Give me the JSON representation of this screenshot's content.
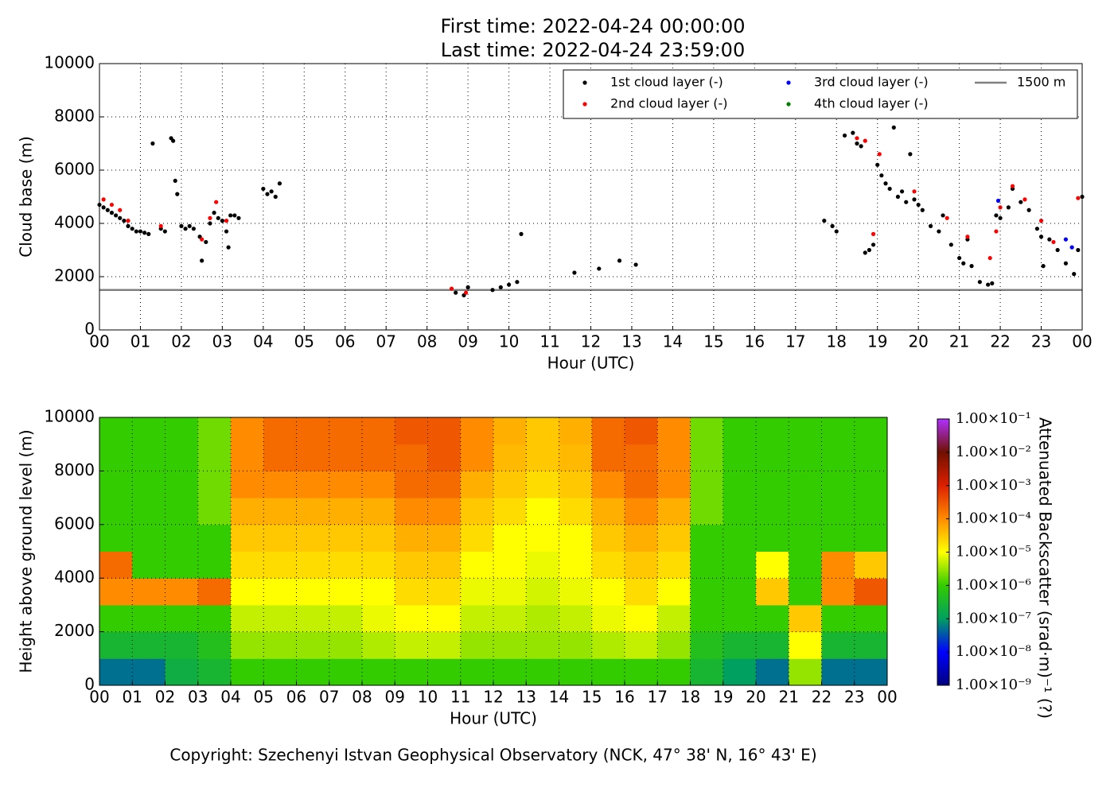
{
  "chart_data": [
    {
      "type": "scatter",
      "title": [
        "First time: 2022-04-24 00:00:00",
        "Last time: 2022-04-24 23:59:00"
      ],
      "x_label": "Hour (UTC)",
      "y_label": "Cloud base (m)",
      "xlim": [
        0,
        24
      ],
      "ylim": [
        0,
        10000
      ],
      "xticks": [
        {
          "value": 0,
          "label": "00"
        },
        {
          "value": 1,
          "label": "01"
        },
        {
          "value": 2,
          "label": "02"
        },
        {
          "value": 3,
          "label": "03"
        },
        {
          "value": 4,
          "label": "04"
        },
        {
          "value": 5,
          "label": "05"
        },
        {
          "value": 6,
          "label": "06"
        },
        {
          "value": 7,
          "label": "07"
        },
        {
          "value": 8,
          "label": "08"
        },
        {
          "value": 9,
          "label": "09"
        },
        {
          "value": 10,
          "label": "10"
        },
        {
          "value": 11,
          "label": "11"
        },
        {
          "value": 12,
          "label": "12"
        },
        {
          "value": 13,
          "label": "13"
        },
        {
          "value": 14,
          "label": "14"
        },
        {
          "value": 15,
          "label": "15"
        },
        {
          "value": 16,
          "label": "16"
        },
        {
          "value": 17,
          "label": "17"
        },
        {
          "value": 18,
          "label": "18"
        },
        {
          "value": 19,
          "label": "19"
        },
        {
          "value": 20,
          "label": "20"
        },
        {
          "value": 21,
          "label": "21"
        },
        {
          "value": 22,
          "label": "22"
        },
        {
          "value": 23,
          "label": "23"
        },
        {
          "value": 24,
          "label": "00"
        }
      ],
      "yticks": [
        0,
        2000,
        4000,
        6000,
        8000,
        10000
      ],
      "grid": true,
      "legend": "upper right",
      "series": [
        {
          "name": "1st cloud layer (-)",
          "color": "#000000",
          "x": [
            0.0,
            0.1,
            0.2,
            0.3,
            0.4,
            0.5,
            0.6,
            0.7,
            0.8,
            0.9,
            1.0,
            1.1,
            1.2,
            1.3,
            1.5,
            1.6,
            1.75,
            1.8,
            1.85,
            1.9,
            2.0,
            2.1,
            2.2,
            2.3,
            2.45,
            2.5,
            2.6,
            2.7,
            2.8,
            2.9,
            3.0,
            3.1,
            3.15,
            3.2,
            3.3,
            3.4,
            4.0,
            4.1,
            4.2,
            4.3,
            4.4,
            8.7,
            8.9,
            9.0,
            9.6,
            9.8,
            10.0,
            10.2,
            10.3,
            11.6,
            12.2,
            12.7,
            13.1,
            17.7,
            17.9,
            18.0,
            18.2,
            18.4,
            18.5,
            18.6,
            18.7,
            18.8,
            18.9,
            19.0,
            19.1,
            19.2,
            19.3,
            19.4,
            19.5,
            19.6,
            19.7,
            19.8,
            19.9,
            20.0,
            20.1,
            20.3,
            20.5,
            20.6,
            20.8,
            21.0,
            21.1,
            21.2,
            21.3,
            21.5,
            21.7,
            21.8,
            21.9,
            22.0,
            22.2,
            22.3,
            22.5,
            22.7,
            22.9,
            23.0,
            23.05,
            23.2,
            23.4,
            23.6,
            23.8,
            23.9,
            24.0
          ],
          "values": [
            4700,
            4600,
            4500,
            4400,
            4300,
            4200,
            4100,
            3900,
            3800,
            3700,
            3700,
            3650,
            3600,
            7000,
            3800,
            3700,
            7200,
            7100,
            5600,
            5100,
            3900,
            3800,
            3900,
            3800,
            3500,
            2600,
            3300,
            4000,
            4400,
            4200,
            4100,
            3700,
            3100,
            4300,
            4300,
            4200,
            5300,
            5100,
            5200,
            5000,
            5500,
            1400,
            1300,
            1600,
            1500,
            1600,
            1700,
            1800,
            3600,
            2150,
            2300,
            2600,
            2450,
            4100,
            3900,
            3700,
            7300,
            7400,
            7000,
            6900,
            2900,
            3000,
            3200,
            6200,
            5800,
            5500,
            5300,
            7600,
            5000,
            5200,
            4800,
            6600,
            4900,
            4700,
            4500,
            3900,
            3700,
            4300,
            3200,
            2700,
            2500,
            3400,
            2400,
            1800,
            1700,
            1750,
            4300,
            4200,
            4600,
            5300,
            4800,
            4500,
            3800,
            3500,
            2400,
            3400,
            3000,
            2500,
            2100,
            3000,
            5000
          ]
        },
        {
          "name": "2nd cloud layer (-)",
          "color": "#ff0000",
          "x": [
            0.1,
            0.3,
            0.5,
            0.7,
            1.5,
            2.5,
            2.7,
            2.85,
            3.1,
            8.6,
            8.95,
            18.5,
            18.7,
            18.9,
            19.05,
            19.9,
            20.7,
            21.2,
            21.75,
            21.9,
            22.0,
            22.3,
            22.6,
            23.0,
            23.3,
            23.9
          ],
          "values": [
            4900,
            4700,
            4500,
            4100,
            3900,
            3400,
            4200,
            4800,
            4100,
            1550,
            1400,
            7200,
            7100,
            3600,
            6600,
            5200,
            4200,
            3500,
            2700,
            3700,
            4600,
            5400,
            4900,
            4100,
            3300,
            4950
          ]
        },
        {
          "name": "3rd cloud layer (-)",
          "color": "#0000ff",
          "x": [
            21.95,
            23.6,
            23.75
          ],
          "values": [
            4850,
            3400,
            3100
          ]
        },
        {
          "name": "4th cloud layer (-)",
          "color": "#008000",
          "x": [],
          "values": []
        }
      ],
      "hlines": [
        {
          "name": "1500 m",
          "value": 1500,
          "color": "#808080"
        }
      ]
    },
    {
      "type": "heatmap",
      "x_label": "Hour (UTC)",
      "y_label": "Height above ground level (m)",
      "colorbar_label": "Attenuated Backscatter (srad·m)⁻¹ (?)",
      "xlim": [
        0,
        24
      ],
      "ylim": [
        0,
        10000
      ],
      "xticks": [
        {
          "value": 0,
          "label": "00"
        },
        {
          "value": 1,
          "label": "01"
        },
        {
          "value": 2,
          "label": "02"
        },
        {
          "value": 3,
          "label": "03"
        },
        {
          "value": 4,
          "label": "04"
        },
        {
          "value": 5,
          "label": "05"
        },
        {
          "value": 6,
          "label": "06"
        },
        {
          "value": 7,
          "label": "07"
        },
        {
          "value": 8,
          "label": "08"
        },
        {
          "value": 9,
          "label": "09"
        },
        {
          "value": 10,
          "label": "10"
        },
        {
          "value": 11,
          "label": "11"
        },
        {
          "value": 12,
          "label": "12"
        },
        {
          "value": 13,
          "label": "13"
        },
        {
          "value": 14,
          "label": "14"
        },
        {
          "value": 15,
          "label": "15"
        },
        {
          "value": 16,
          "label": "16"
        },
        {
          "value": 17,
          "label": "17"
        },
        {
          "value": 18,
          "label": "18"
        },
        {
          "value": 19,
          "label": "19"
        },
        {
          "value": 20,
          "label": "20"
        },
        {
          "value": 21,
          "label": "21"
        },
        {
          "value": 22,
          "label": "22"
        },
        {
          "value": 23,
          "label": "23"
        },
        {
          "value": 24,
          "label": "00"
        }
      ],
      "yticks": [
        0,
        2000,
        4000,
        6000,
        8000,
        10000
      ],
      "grid": true,
      "x_bins": [
        0,
        1,
        2,
        3,
        4,
        5,
        6,
        7,
        8,
        9,
        10,
        11,
        12,
        13,
        14,
        15,
        16,
        17,
        18,
        19,
        20,
        21,
        22,
        23,
        24
      ],
      "y_bins": [
        0,
        1000,
        2000,
        3000,
        4000,
        5000,
        6000,
        7000,
        8000,
        9000,
        10000
      ],
      "z": [
        [
          5e-08,
          5e-08,
          2e-07,
          3e-07,
          1e-06,
          1e-06,
          1e-06,
          1e-06,
          1e-06,
          1e-06,
          1e-06,
          1e-06,
          1e-06,
          1e-06,
          1e-06,
          1e-06,
          1e-06,
          1e-06,
          3e-07,
          1e-07,
          5e-08,
          3e-06,
          5e-08,
          5e-08
        ],
        [
          3e-07,
          3e-07,
          3e-07,
          5e-07,
          3e-06,
          3e-06,
          3e-06,
          3e-06,
          4e-06,
          5e-06,
          5e-06,
          3e-06,
          3e-06,
          3e-06,
          3e-06,
          4e-06,
          5e-06,
          3e-06,
          5e-07,
          3e-07,
          3e-07,
          1e-05,
          3e-07,
          3e-07
        ],
        [
          1e-06,
          1e-06,
          1e-06,
          1e-06,
          5e-06,
          5e-06,
          5e-06,
          5e-06,
          8e-06,
          1e-05,
          1e-05,
          5e-06,
          5e-06,
          4e-06,
          5e-06,
          8e-06,
          1e-05,
          5e-06,
          1e-06,
          1e-06,
          1e-06,
          3e-05,
          1e-06,
          1e-06
        ],
        [
          0.0001,
          0.0001,
          0.0001,
          0.0002,
          1e-05,
          1e-05,
          1e-05,
          1e-05,
          1e-05,
          2e-05,
          2e-05,
          8e-06,
          8e-06,
          6e-06,
          8e-06,
          1e-05,
          2e-05,
          1e-05,
          1e-06,
          1e-06,
          3e-05,
          1e-06,
          0.0001,
          0.0003
        ],
        [
          0.0002,
          1e-06,
          1e-06,
          1e-06,
          2e-05,
          2e-05,
          2e-05,
          2e-05,
          2e-05,
          3e-05,
          3e-05,
          1e-05,
          1e-05,
          8e-06,
          1e-05,
          2e-05,
          3e-05,
          2e-05,
          1e-06,
          1e-06,
          1e-05,
          1e-06,
          0.0001,
          3e-05
        ],
        [
          1e-06,
          1e-06,
          1e-06,
          1e-06,
          3e-05,
          3e-05,
          3e-05,
          3e-05,
          3e-05,
          5e-05,
          5e-05,
          2e-05,
          1e-05,
          1e-05,
          1e-05,
          3e-05,
          5e-05,
          3e-05,
          1e-06,
          1e-06,
          1e-06,
          1e-06,
          1e-06,
          1e-06
        ],
        [
          1e-06,
          1e-06,
          1e-06,
          2e-06,
          5e-05,
          5e-05,
          5e-05,
          5e-05,
          5e-05,
          0.0001,
          0.0001,
          3e-05,
          2e-05,
          1e-05,
          2e-05,
          5e-05,
          0.0001,
          5e-05,
          2e-06,
          1e-06,
          1e-06,
          1e-06,
          1e-06,
          1e-06
        ],
        [
          1e-06,
          1e-06,
          1e-06,
          2e-06,
          0.0001,
          0.0001,
          0.0001,
          0.0001,
          0.0001,
          0.0002,
          0.0002,
          5e-05,
          3e-05,
          2e-05,
          3e-05,
          0.0001,
          0.0002,
          0.0001,
          2e-06,
          1e-06,
          1e-06,
          1e-06,
          1e-06,
          1e-06
        ],
        [
          1e-06,
          1e-06,
          1e-06,
          2e-06,
          0.0001,
          0.0002,
          0.0002,
          0.0002,
          0.0002,
          0.0002,
          0.0003,
          0.0001,
          4e-05,
          3e-05,
          4e-05,
          0.0002,
          0.0002,
          0.0001,
          2e-06,
          1e-06,
          1e-06,
          1e-06,
          1e-06,
          1e-06
        ],
        [
          1e-06,
          1e-06,
          1e-06,
          2e-06,
          0.0001,
          0.0002,
          0.0002,
          0.0002,
          0.0002,
          0.0003,
          0.0003,
          0.0001,
          5e-05,
          3e-05,
          5e-05,
          0.0002,
          0.0003,
          0.0001,
          2e-06,
          1e-06,
          1e-06,
          1e-06,
          1e-06,
          1e-06
        ]
      ],
      "log_scale": true,
      "clim": [
        1e-09,
        0.1
      ],
      "colorbar_ticks": [
        {
          "value": 1e-09,
          "label": "1.00×10⁻⁹"
        },
        {
          "value": 1e-08,
          "label": "1.00×10⁻⁸"
        },
        {
          "value": 1e-07,
          "label": "1.00×10⁻⁷"
        },
        {
          "value": 1e-06,
          "label": "1.00×10⁻⁶"
        },
        {
          "value": 1e-05,
          "label": "1.00×10⁻⁵"
        },
        {
          "value": 0.0001,
          "label": "1.00×10⁻⁴"
        },
        {
          "value": 0.001,
          "label": "1.00×10⁻³"
        },
        {
          "value": 0.01,
          "label": "1.00×10⁻²"
        },
        {
          "value": 0.1,
          "label": "1.00×10⁻¹"
        }
      ],
      "colors": [
        "#00007f",
        "#0000ff",
        "#00a060",
        "#33cc00",
        "#ffff00",
        "#ff8c00",
        "#dd2000",
        "#701000",
        "#b030ff"
      ]
    }
  ],
  "footer": "Copyright: Szechenyi Istvan Geophysical Observatory (NCK, 47° 38' N, 16° 43' E)"
}
